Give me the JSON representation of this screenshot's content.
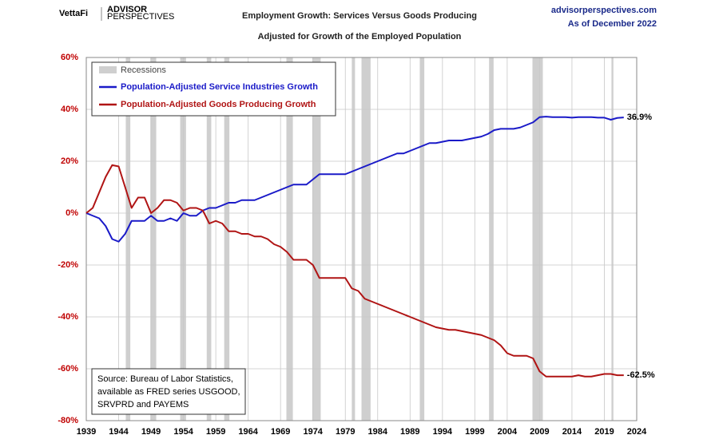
{
  "logo": {
    "brand": "VettaFi",
    "line1": "ADVISOR",
    "line2": "PERSPECTIVES"
  },
  "site": "advisorperspectives.com",
  "as_of": "As of December 2022",
  "chart_data": {
    "type": "line",
    "title": "Employment Growth: Services Versus Goods Producing",
    "subtitle": "Adjusted for Growth of the Employed Population",
    "x": [
      1939,
      1940,
      1941,
      1942,
      1943,
      1944,
      1945,
      1946,
      1947,
      1948,
      1949,
      1950,
      1951,
      1952,
      1953,
      1954,
      1955,
      1956,
      1957,
      1958,
      1959,
      1960,
      1961,
      1962,
      1963,
      1964,
      1965,
      1966,
      1967,
      1968,
      1969,
      1970,
      1971,
      1972,
      1973,
      1974,
      1975,
      1976,
      1977,
      1978,
      1979,
      1980,
      1981,
      1982,
      1983,
      1984,
      1985,
      1986,
      1987,
      1988,
      1989,
      1990,
      1991,
      1992,
      1993,
      1994,
      1995,
      1996,
      1997,
      1998,
      1999,
      2000,
      2001,
      2002,
      2003,
      2004,
      2005,
      2006,
      2007,
      2008,
      2009,
      2010,
      2011,
      2012,
      2013,
      2014,
      2015,
      2016,
      2017,
      2018,
      2019,
      2020,
      2021,
      2022
    ],
    "series": [
      {
        "name": "Population-Adjusted Service Industries Growth",
        "color": "#1a1ac8",
        "values": [
          0,
          -1,
          -2,
          -5,
          -10,
          -11,
          -8,
          -3,
          -3,
          -3,
          -1,
          -3,
          -3,
          -2,
          -3,
          0,
          -1,
          -1,
          1,
          2,
          2,
          3,
          4,
          4,
          5,
          5,
          5,
          6,
          7,
          8,
          9,
          10,
          11,
          11,
          11,
          13,
          15,
          15,
          15,
          15,
          15,
          16,
          17,
          18,
          19,
          20,
          21,
          22,
          23,
          23,
          24,
          25,
          26,
          27,
          27,
          27.5,
          28,
          28,
          28,
          28.5,
          29,
          29.5,
          30.5,
          32,
          32.5,
          32.5,
          32.5,
          33,
          34,
          35,
          37,
          37.2,
          37,
          37,
          37,
          36.8,
          37,
          37,
          37,
          36.8,
          36.8,
          36,
          36.7,
          36.9
        ],
        "value_labels": [
          null,
          null,
          null,
          null,
          null,
          null,
          null,
          null,
          null,
          null,
          null,
          null,
          null,
          null,
          null,
          null,
          null,
          null,
          null,
          null,
          null,
          null,
          null,
          null,
          null,
          null,
          null,
          null,
          null,
          null,
          null,
          null,
          null,
          null,
          null,
          null,
          null,
          null,
          null,
          null,
          null,
          null,
          null,
          null,
          null,
          null,
          null,
          null,
          null,
          null,
          null,
          null,
          null,
          null,
          null,
          null,
          null,
          null,
          null,
          null,
          null,
          null,
          null,
          null,
          null,
          null,
          null,
          null,
          null,
          null,
          null,
          null,
          null,
          null,
          null,
          null,
          null,
          null,
          null,
          null,
          null,
          null,
          null,
          "36.9%"
        ]
      },
      {
        "name": "Population-Adjusted Goods Producing Growth",
        "color": "#b01414",
        "values": [
          0,
          2,
          8,
          14,
          18.5,
          18,
          10,
          2,
          6,
          6,
          0,
          2,
          5,
          5,
          4,
          1,
          2,
          2,
          1,
          -4,
          -3,
          -4,
          -7,
          -7,
          -8,
          -8,
          -9,
          -9,
          -10,
          -12,
          -13,
          -15,
          -18,
          -18,
          -18,
          -20,
          -25,
          -25,
          -25,
          -25,
          -25,
          -29,
          -30,
          -33,
          -34,
          -35,
          -36,
          -37,
          -38,
          -39,
          -40,
          -41,
          -42,
          -43,
          -44,
          -44.5,
          -45,
          -45,
          -45.5,
          -46,
          -46.5,
          -47,
          -48,
          -49,
          -51,
          -54,
          -55,
          -55,
          -55,
          -56,
          -61,
          -63,
          -63,
          -63,
          -63,
          -63,
          -62.5,
          -63,
          -63,
          -62.5,
          -62,
          -62,
          -62.5,
          -62.5
        ],
        "value_labels": [
          null,
          null,
          null,
          null,
          null,
          null,
          null,
          null,
          null,
          null,
          null,
          null,
          null,
          null,
          null,
          null,
          null,
          null,
          null,
          null,
          null,
          null,
          null,
          null,
          null,
          null,
          null,
          null,
          null,
          null,
          null,
          null,
          null,
          null,
          null,
          null,
          null,
          null,
          null,
          null,
          null,
          null,
          null,
          null,
          null,
          null,
          null,
          null,
          null,
          null,
          null,
          null,
          null,
          null,
          null,
          null,
          null,
          null,
          null,
          null,
          null,
          null,
          null,
          null,
          null,
          null,
          null,
          null,
          null,
          null,
          null,
          null,
          null,
          null,
          null,
          null,
          null,
          null,
          null,
          null,
          null,
          null,
          null,
          "-62.5%"
        ]
      }
    ],
    "recession_label": "Recessions",
    "recession_color": "#cfcfcf",
    "recessions": [
      [
        1945.1,
        1945.8
      ],
      [
        1948.9,
        1949.8
      ],
      [
        1953.5,
        1954.4
      ],
      [
        1957.6,
        1958.3
      ],
      [
        1960.3,
        1961.1
      ],
      [
        1969.9,
        1970.9
      ],
      [
        1973.9,
        1975.2
      ],
      [
        1980.0,
        1980.5
      ],
      [
        1981.5,
        1982.9
      ],
      [
        1990.5,
        1991.2
      ],
      [
        2001.2,
        2001.9
      ],
      [
        2007.9,
        2009.5
      ],
      [
        2020.1,
        2020.4
      ]
    ],
    "xlim": [
      1939,
      2024
    ],
    "xticks": [
      1939,
      1944,
      1949,
      1954,
      1959,
      1964,
      1969,
      1974,
      1979,
      1984,
      1989,
      1994,
      1999,
      2004,
      2009,
      2014,
      2019,
      2024
    ],
    "ylim": [
      -80,
      60
    ],
    "yticks": [
      {
        "value": -80,
        "label": "-80%"
      },
      {
        "value": -60,
        "label": "-60%"
      },
      {
        "value": -40,
        "label": "-40%"
      },
      {
        "value": -20,
        "label": "-20%"
      },
      {
        "value": 0,
        "label": "0%"
      },
      {
        "value": 20,
        "label": "20%"
      },
      {
        "value": 40,
        "label": "40%"
      },
      {
        "value": 60,
        "label": "60%"
      }
    ],
    "grid": true,
    "legend": "upper-left",
    "source": [
      "Source: Bureau of Labor Statistics,",
      "available as FRED series USGOOD,",
      "SRVPRD and PAYEMS"
    ]
  }
}
